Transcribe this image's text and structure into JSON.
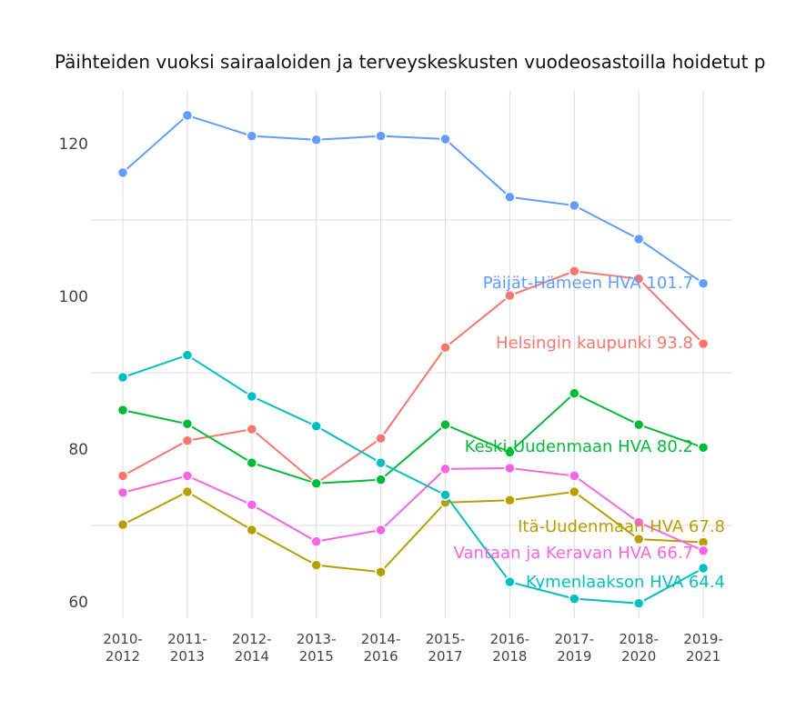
{
  "chart_data": {
    "type": "line",
    "title": "Päihteiden vuoksi sairaaloiden ja terveyskeskusten vuodeosastoilla hoidetut p",
    "xlabel": "",
    "ylabel": "",
    "categories": [
      [
        "2010-",
        "2012"
      ],
      [
        "2011-",
        "2013"
      ],
      [
        "2012-",
        "2014"
      ],
      [
        "2013-",
        "2015"
      ],
      [
        "2014-",
        "2016"
      ],
      [
        "2015-",
        "2017"
      ],
      [
        "2016-",
        "2018"
      ],
      [
        "2017-",
        "2019"
      ],
      [
        "2018-",
        "2020"
      ],
      [
        "2019-",
        "2021"
      ]
    ],
    "yticks": [
      60,
      80,
      100,
      120
    ],
    "ylim": [
      57.4,
      126.9
    ],
    "grid": true,
    "legend": "none (direct end labels)",
    "series": [
      {
        "name": "Päijät-Hämeen HVA",
        "end_label": "Päijät-Hämeen HVA 101.7",
        "color": "#619CFF",
        "values": [
          116.2,
          123.7,
          121.0,
          120.5,
          121.0,
          120.6,
          113.0,
          111.9,
          107.5,
          101.7
        ]
      },
      {
        "name": "Helsingin kaupunki",
        "end_label": "Helsingin kaupunki 93.8",
        "color": "#F8766D",
        "values": [
          76.5,
          81.1,
          82.6,
          75.5,
          81.4,
          93.3,
          100.1,
          103.3,
          102.3,
          93.8
        ]
      },
      {
        "name": "Keski-Uudenmaan HVA",
        "end_label": "Keski-Uudenmaan HVA 80.2",
        "color": "#00BA38",
        "values": [
          85.1,
          83.3,
          78.2,
          75.5,
          76.0,
          83.2,
          79.6,
          87.3,
          83.2,
          80.2
        ]
      },
      {
        "name": "Itä-Uudenmaan HVA",
        "end_label": "Itä-Uudenmaan HVA 67.8",
        "color": "#B79F00",
        "values": [
          70.1,
          74.4,
          69.4,
          64.8,
          63.9,
          73.0,
          73.3,
          74.4,
          68.2,
          67.8
        ]
      },
      {
        "name": "Vantaan ja Keravan HVA",
        "end_label": "Vantaan ja Keravan HVA 66.7",
        "color": "#F564E3",
        "values": [
          74.3,
          76.5,
          72.7,
          67.9,
          69.4,
          77.4,
          77.5,
          76.5,
          70.4,
          66.7
        ]
      },
      {
        "name": "Kymenlaakson HVA",
        "end_label": "Kymenlaakson HVA 64.4",
        "color": "#00BFC4",
        "values": [
          89.4,
          92.3,
          86.9,
          83.0,
          78.2,
          74.0,
          62.6,
          60.4,
          59.8,
          64.4
        ]
      }
    ]
  }
}
